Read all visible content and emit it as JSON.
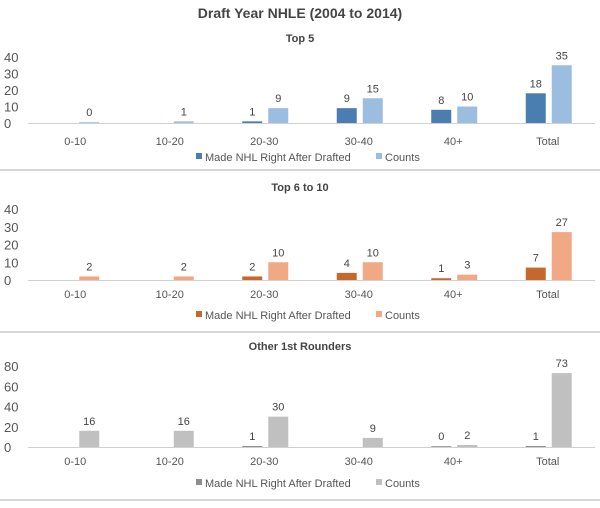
{
  "chart_data": {
    "title": "Draft Year NHLE (2004 to 2014)",
    "panels": [
      {
        "type": "bar",
        "title": "Top 5",
        "categories": [
          "0-10",
          "10-20",
          "20-30",
          "30-40",
          "40+",
          "Total"
        ],
        "yticks": [
          "0",
          "10",
          "20",
          "30",
          "40"
        ],
        "ylim": [
          0,
          40
        ],
        "series": [
          {
            "name": "Made NHL Right After Drafted",
            "color": "#4a7db0",
            "values": [
              null,
              null,
              1,
              9,
              8,
              18
            ]
          },
          {
            "name": "Counts",
            "color": "#9bbde0",
            "values": [
              0,
              1,
              9,
              15,
              10,
              35
            ]
          }
        ],
        "legend": "bottom"
      },
      {
        "type": "bar",
        "title": "Top 6 to 10",
        "categories": [
          "0-10",
          "10-20",
          "20-30",
          "30-40",
          "40+",
          "Total"
        ],
        "yticks": [
          "0",
          "10",
          "20",
          "30",
          "40"
        ],
        "ylim": [
          0,
          40
        ],
        "series": [
          {
            "name": "Made NHL Right After Drafted",
            "color": "#c5682b",
            "values": [
              null,
              null,
              2,
              4,
              1,
              7
            ]
          },
          {
            "name": "Counts",
            "color": "#f1a985",
            "values": [
              2,
              2,
              10,
              10,
              3,
              27
            ]
          }
        ],
        "legend": "bottom"
      },
      {
        "type": "bar",
        "title": "Other 1st Rounders",
        "categories": [
          "0-10",
          "10-20",
          "20-30",
          "30-40",
          "40+",
          "Total"
        ],
        "yticks": [
          "0",
          "20",
          "40",
          "60",
          "80"
        ],
        "ylim": [
          0,
          80
        ],
        "series": [
          {
            "name": "Made NHL Right After Drafted",
            "color": "#8e8e8e",
            "values": [
              null,
              null,
              1,
              null,
              0,
              1
            ]
          },
          {
            "name": "Counts",
            "color": "#c0c0c0",
            "values": [
              16,
              16,
              30,
              9,
              2,
              73
            ]
          }
        ],
        "legend": "bottom"
      }
    ]
  }
}
